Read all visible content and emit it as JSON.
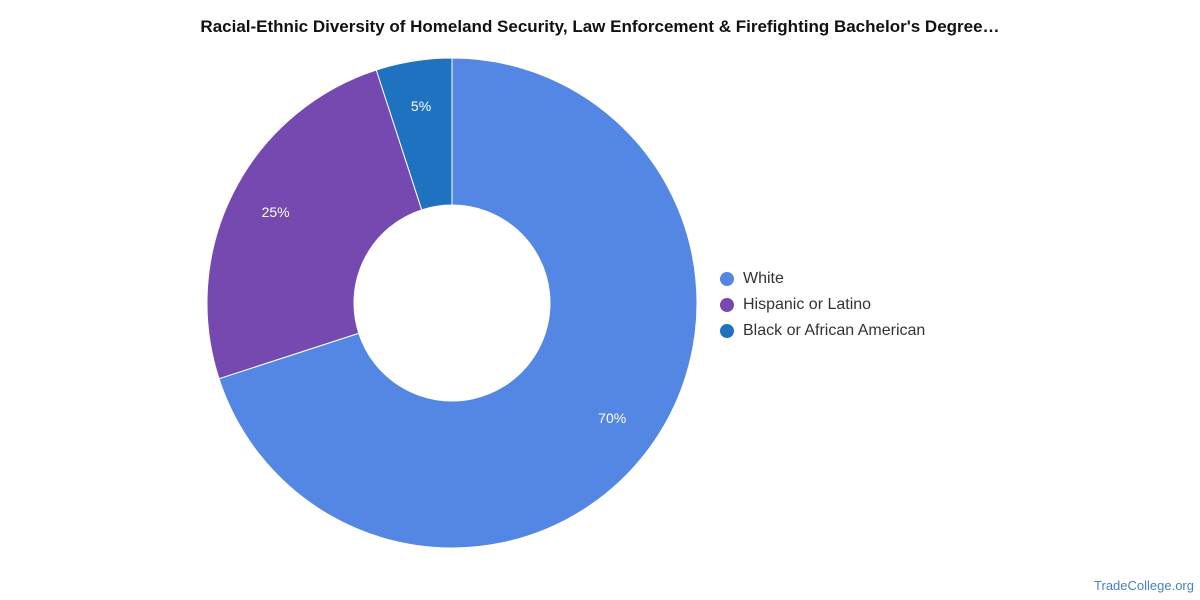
{
  "chart_data": {
    "type": "pie",
    "donut": true,
    "title": "Racial-Ethnic Diversity of Homeland Security, Law Enforcement & Firefighting Bachelor's Degree…",
    "legend_position": "right",
    "slices": [
      {
        "name": "White",
        "value": 70,
        "label": "70%",
        "color": "#5486e3"
      },
      {
        "name": "Hispanic or Latino",
        "value": 25,
        "label": "25%",
        "color": "#7549b0"
      },
      {
        "name": "Black or African American",
        "value": 5,
        "label": "5%",
        "color": "#1f72c0"
      }
    ]
  },
  "watermark": "TradeCollege.org"
}
